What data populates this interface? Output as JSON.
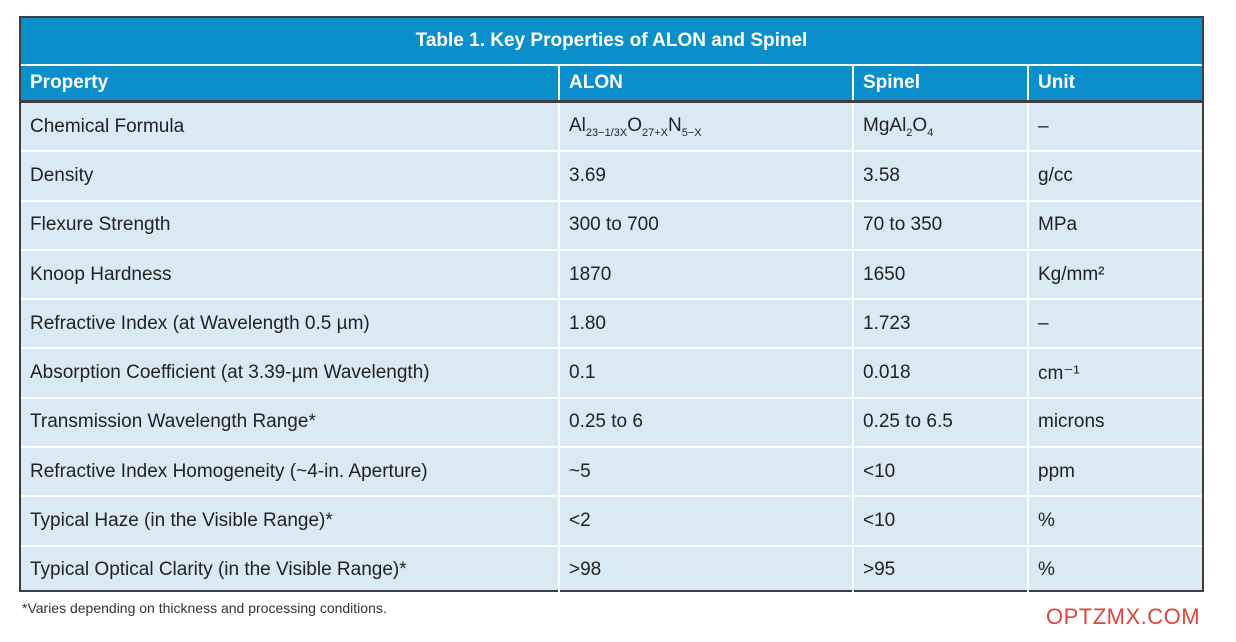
{
  "table": {
    "title": "Table 1. Key Properties of ALON and Spinel",
    "headers": [
      "Property",
      "ALON",
      "Spinel",
      "Unit"
    ],
    "formula": {
      "alon": {
        "base1": "Al",
        "sub1": "23−1/3X",
        "base2": "O",
        "sub2": "27+X",
        "base3": "N",
        "sub3": "5−X"
      },
      "spinel": {
        "base1": "MgAl",
        "sub1": "2",
        "base2": "O",
        "sub2": "4"
      }
    },
    "rows": [
      {
        "property": "Chemical Formula",
        "alon": "",
        "spinel": "",
        "unit": "–"
      },
      {
        "property": "Density",
        "alon": "3.69",
        "spinel": "3.58",
        "unit": "g/cc"
      },
      {
        "property": "Flexure Strength",
        "alon": "300 to 700",
        "spinel": "70 to 350",
        "unit": "MPa"
      },
      {
        "property": "Knoop Hardness",
        "alon": "1870",
        "spinel": "1650",
        "unit": "Kg/mm²"
      },
      {
        "property": "Refractive Index (at Wavelength 0.5 µm)",
        "alon": "1.80",
        "spinel": "1.723",
        "unit": "–"
      },
      {
        "property": "Absorption Coefficient (at 3.39-µm Wavelength)",
        "alon": "0.1",
        "spinel": "0.018",
        "unit": "cm⁻¹"
      },
      {
        "property": "Transmission Wavelength Range*",
        "alon": "0.25 to 6",
        "spinel": "0.25 to 6.5",
        "unit": "microns"
      },
      {
        "property": "Refractive Index Homogeneity (~4-in. Aperture)",
        "alon": "~5",
        "spinel": "<10",
        "unit": "ppm"
      },
      {
        "property": "Typical Haze (in the Visible Range)*",
        "alon": "<2",
        "spinel": "<10",
        "unit": "%"
      },
      {
        "property": "Typical Optical Clarity (in the Visible Range)*",
        "alon": ">98",
        "spinel": ">95",
        "unit": "%"
      }
    ]
  },
  "footnote": "*Varies depending on thickness and processing conditions.",
  "watermark": "OPTZMX.COM"
}
